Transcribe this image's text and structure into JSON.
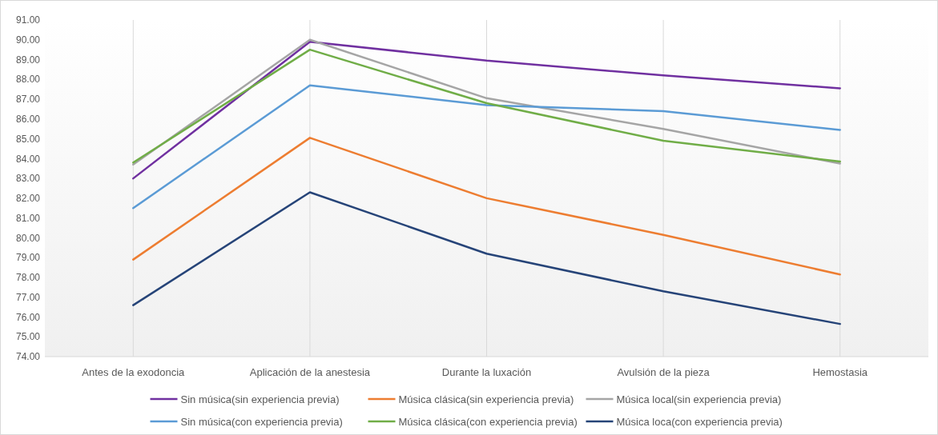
{
  "chart_data": {
    "type": "line",
    "categories": [
      "Antes de la exodoncia",
      "Aplicación de la anestesia",
      "Durante la luxación",
      "Avulsión de la pieza",
      "Hemostasia"
    ],
    "series": [
      {
        "name": "Sin música(sin experiencia previa)",
        "color": "#7030a0",
        "values": [
          83.0,
          89.9,
          88.95,
          88.2,
          87.55
        ]
      },
      {
        "name": "Música clásica(sin experiencia previa)",
        "color": "#ed7d31",
        "values": [
          78.9,
          85.05,
          82.0,
          80.15,
          78.15
        ]
      },
      {
        "name": "Música local(sin experiencia previa)",
        "color": "#a5a5a5",
        "values": [
          83.7,
          90.0,
          87.05,
          85.5,
          83.75
        ]
      },
      {
        "name": "Sin música(con experiencia previa)",
        "color": "#5b9bd5",
        "values": [
          81.5,
          87.7,
          86.7,
          86.4,
          85.45
        ]
      },
      {
        "name": "Música clásica(con experiencia previa)",
        "color": "#70ad47",
        "values": [
          83.8,
          89.5,
          86.8,
          84.9,
          83.85
        ]
      },
      {
        "name": "Música loca(con experiencia previa)",
        "color": "#264478",
        "values": [
          76.6,
          82.3,
          79.2,
          77.3,
          75.65
        ]
      }
    ],
    "ylim": [
      74,
      91
    ],
    "yticks": [
      {
        "value": 74,
        "label": "74.00"
      },
      {
        "value": 75,
        "label": "75.00"
      },
      {
        "value": 76,
        "label": "76.00"
      },
      {
        "value": 77,
        "label": "77.00"
      },
      {
        "value": 78,
        "label": "78.00"
      },
      {
        "value": 79,
        "label": "79.00"
      },
      {
        "value": 80,
        "label": "80.00"
      },
      {
        "value": 81,
        "label": "81.00"
      },
      {
        "value": 82,
        "label": "82.00"
      },
      {
        "value": 83,
        "label": "83.00"
      },
      {
        "value": 84,
        "label": "84.00"
      },
      {
        "value": 85,
        "label": "85.00"
      },
      {
        "value": 86,
        "label": "86.00"
      },
      {
        "value": 87,
        "label": "87.00"
      },
      {
        "value": 88,
        "label": "88.00"
      },
      {
        "value": 89,
        "label": "89.00"
      },
      {
        "value": 90,
        "label": "90.00"
      },
      {
        "value": 91,
        "label": "91.00"
      }
    ],
    "grid": "x",
    "legend": "bottom",
    "marker": "none",
    "line_style": "solid"
  }
}
